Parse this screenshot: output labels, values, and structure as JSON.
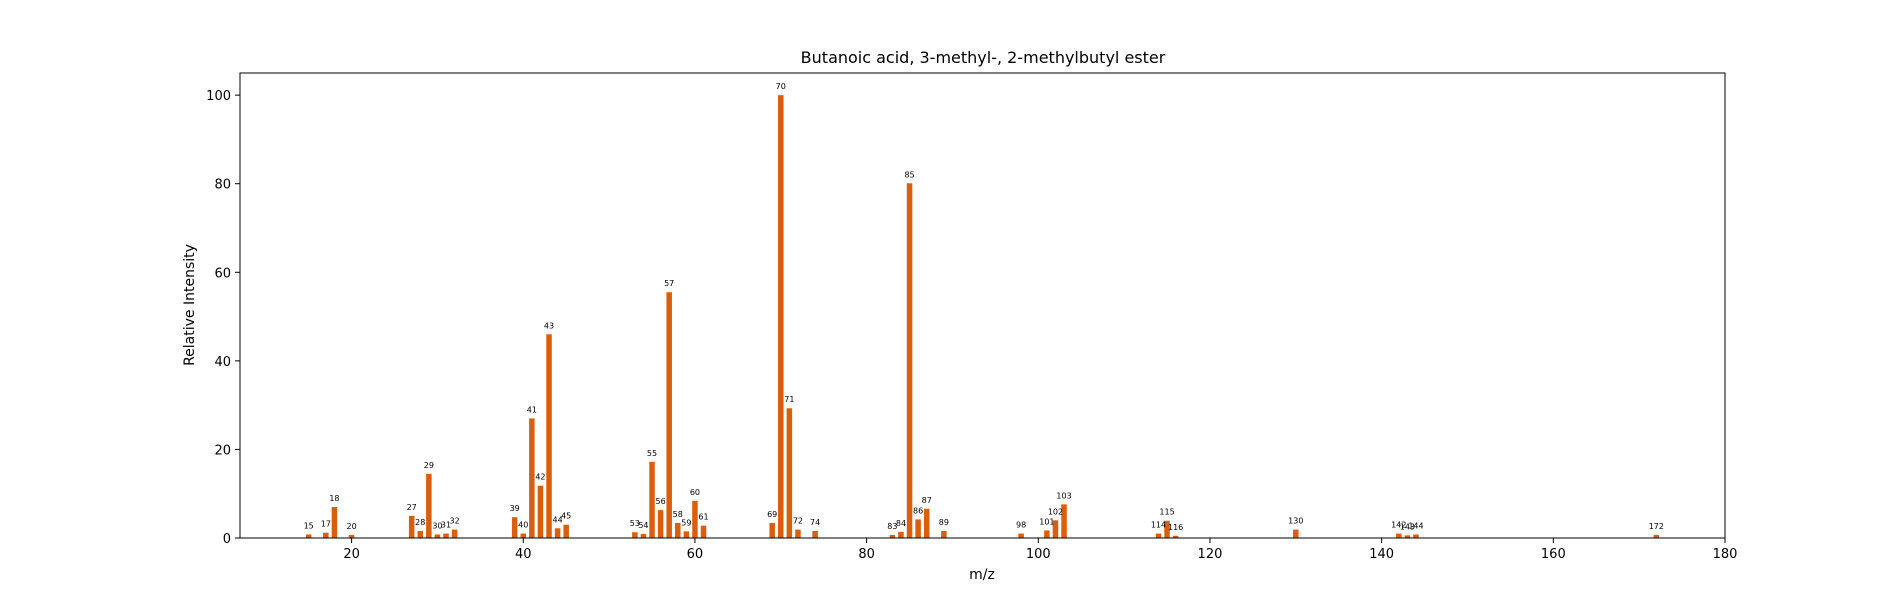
{
  "chart_data": {
    "type": "bar",
    "title": "Butanoic acid, 3-methyl-, 2-methylbutyl ester",
    "xlabel": "m/z",
    "ylabel": "Relative Intensity",
    "xlim": [
      7,
      180
    ],
    "ylim": [
      0,
      105
    ],
    "xticks": [
      20,
      40,
      60,
      80,
      100,
      120,
      140,
      160,
      180
    ],
    "yticks": [
      0,
      20,
      40,
      60,
      80,
      100
    ],
    "grid": false,
    "bar_color": "#d95f0e",
    "x": [
      15,
      17,
      18,
      20,
      27,
      28,
      29,
      30,
      31,
      32,
      39,
      40,
      41,
      42,
      43,
      44,
      45,
      53,
      54,
      55,
      56,
      57,
      58,
      59,
      60,
      61,
      69,
      70,
      71,
      72,
      74,
      83,
      84,
      85,
      86,
      87,
      89,
      98,
      101,
      102,
      103,
      114,
      115,
      116,
      130,
      142,
      143,
      144,
      172
    ],
    "values": [
      0.8,
      1.2,
      7.0,
      0.7,
      5.0,
      1.6,
      14.5,
      0.8,
      1.0,
      1.9,
      4.7,
      1.0,
      27.0,
      11.8,
      46.0,
      2.2,
      3.0,
      1.3,
      0.9,
      17.2,
      6.3,
      55.5,
      3.4,
      1.5,
      8.4,
      2.8,
      3.4,
      100.0,
      29.3,
      1.9,
      1.6,
      0.7,
      1.4,
      80.1,
      4.2,
      6.6,
      1.6,
      1.0,
      1.7,
      4.0,
      7.6,
      1.0,
      3.9,
      0.5,
      1.9,
      1.0,
      0.6,
      0.8,
      0.7
    ]
  }
}
